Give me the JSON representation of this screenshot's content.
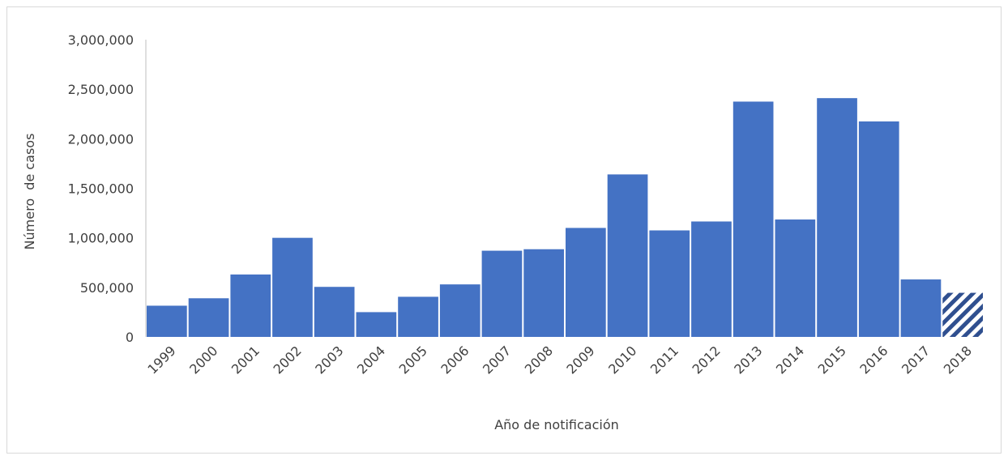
{
  "chart_data": {
    "type": "bar",
    "title": "",
    "xlabel": "Año de notificación",
    "ylabel": "Número  de casos",
    "ylim": [
      0,
      3000000
    ],
    "yticks": [
      0,
      500000,
      1000000,
      1500000,
      2000000,
      2500000,
      3000000
    ],
    "ytick_labels": [
      "0",
      "500,000",
      "1,000,000",
      "1,500,000",
      "2,000,000",
      "2,500,000",
      "3,000,000"
    ],
    "grid": false,
    "legend": "none",
    "categories": [
      "1999",
      "2000",
      "2001",
      "2002",
      "2003",
      "2004",
      "2005",
      "2006",
      "2007",
      "2008",
      "2009",
      "2010",
      "2011",
      "2012",
      "2013",
      "2014",
      "2015",
      "2016",
      "2017",
      "2018"
    ],
    "values": [
      315000,
      390000,
      630000,
      1000000,
      505000,
      250000,
      405000,
      530000,
      870000,
      885000,
      1100000,
      1640000,
      1075000,
      1165000,
      2375000,
      1185000,
      2410000,
      2175000,
      580000,
      445000
    ],
    "bar_color": "#4472c4",
    "hatched_categories": [
      "2018"
    ],
    "hatch_color": "#2f4f8f"
  }
}
